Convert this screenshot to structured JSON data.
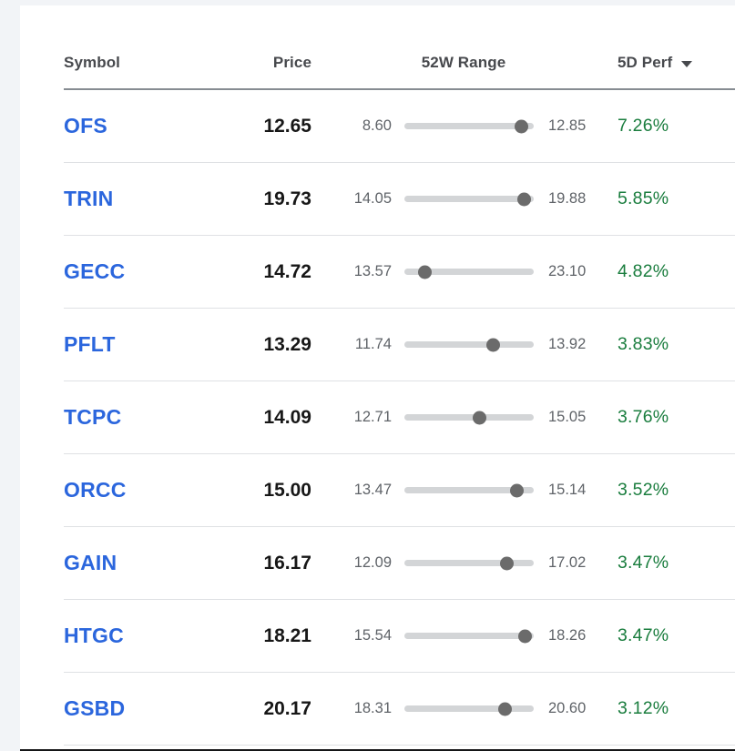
{
  "page": {
    "bg": "#f2f4f7",
    "card_bg": "#ffffff"
  },
  "table": {
    "columns": {
      "symbol": "Symbol",
      "price": "Price",
      "range": "52W Range",
      "perf": "5D Perf"
    },
    "sort": {
      "column": "5D Perf",
      "direction": "desc"
    },
    "rows": [
      {
        "symbol": "OFS",
        "price": "12.65",
        "low": "8.60",
        "high": "12.85",
        "perf": "7.26%"
      },
      {
        "symbol": "TRIN",
        "price": "19.73",
        "low": "14.05",
        "high": "19.88",
        "perf": "5.85%"
      },
      {
        "symbol": "GECC",
        "price": "14.72",
        "low": "13.57",
        "high": "23.10",
        "perf": "4.82%",
        "next_col_fragment": "-"
      },
      {
        "symbol": "PFLT",
        "price": "13.29",
        "low": "11.74",
        "high": "13.92",
        "perf": "3.83%"
      },
      {
        "symbol": "TCPC",
        "price": "14.09",
        "low": "12.71",
        "high": "15.05",
        "perf": "3.76%"
      },
      {
        "symbol": "ORCC",
        "price": "15.00",
        "low": "13.47",
        "high": "15.14",
        "perf": "3.52%"
      },
      {
        "symbol": "GAIN",
        "price": "16.17",
        "low": "12.09",
        "high": "17.02",
        "perf": "3.47%"
      },
      {
        "symbol": "HTGC",
        "price": "18.21",
        "low": "15.54",
        "high": "18.26",
        "perf": "3.47%"
      },
      {
        "symbol": "GSBD",
        "price": "20.17",
        "low": "18.31",
        "high": "20.60",
        "perf": "3.12%"
      }
    ],
    "colors": {
      "symbol_blue": "#2b66dd",
      "price_black": "#171717",
      "range_gray": "#5f6368",
      "track_gray": "#d3d5d7",
      "dot_gray": "#6b6b6b",
      "perf_green": "#1a7d3e",
      "header_text": "#47494d",
      "header_border": "#868c92",
      "row_border": "#dfe1e4",
      "frag_red": "#d9453c",
      "bottom_line": "#151617"
    }
  }
}
